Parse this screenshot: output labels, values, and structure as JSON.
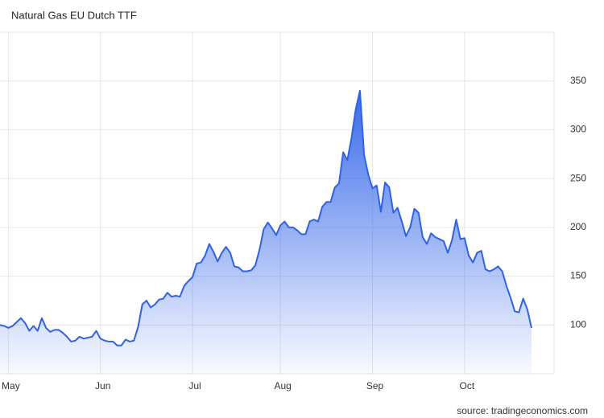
{
  "chart_data": {
    "type": "area",
    "title": "Natural Gas EU Dutch TTF",
    "source": "source: tradingeconomics.com",
    "categories": [
      null,
      null,
      "May",
      null,
      null,
      null,
      null,
      null,
      null,
      null,
      null,
      null,
      null,
      null,
      null,
      null,
      null,
      null,
      null,
      null,
      null,
      null,
      null,
      null,
      "Jun",
      null,
      null,
      null,
      null,
      null,
      null,
      null,
      null,
      null,
      null,
      null,
      null,
      null,
      null,
      null,
      null,
      null,
      null,
      null,
      null,
      null,
      "Jul",
      null,
      null,
      null,
      null,
      null,
      null,
      null,
      null,
      null,
      null,
      null,
      null,
      null,
      null,
      null,
      null,
      null,
      null,
      null,
      null,
      "Aug",
      null,
      null,
      null,
      null,
      null,
      null,
      null,
      null,
      null,
      null,
      null,
      null,
      null,
      null,
      null,
      null,
      null,
      null,
      null,
      null,
      null,
      "Sep",
      null,
      null,
      null,
      null,
      null,
      null,
      null,
      null,
      null,
      null,
      null,
      null,
      null,
      null,
      null,
      null,
      null,
      null,
      null,
      null,
      null,
      "Oct",
      null,
      null,
      null,
      null,
      null,
      null,
      null,
      null,
      null,
      null,
      null,
      null,
      null,
      null,
      null,
      null
    ],
    "values": [
      100,
      99,
      97,
      99,
      103,
      107,
      102,
      94,
      99,
      94,
      107,
      97,
      93,
      95,
      95,
      92,
      88,
      83,
      84,
      88,
      86,
      87,
      88,
      94,
      86,
      84,
      83,
      83,
      79,
      79,
      85,
      83,
      84,
      98,
      121,
      125,
      118,
      121,
      126,
      127,
      133,
      129,
      130,
      129,
      140,
      145,
      149,
      163,
      164,
      171,
      183,
      175,
      165,
      174,
      180,
      174,
      160,
      159,
      155,
      155,
      156,
      161,
      177,
      198,
      205,
      199,
      192,
      202,
      206,
      200,
      200,
      197,
      193,
      193,
      206,
      208,
      206,
      221,
      226,
      226,
      241,
      245,
      277,
      269,
      292,
      321,
      340,
      274,
      254,
      240,
      243,
      216,
      246,
      241,
      215,
      220,
      206,
      191,
      200,
      219,
      215,
      190,
      183,
      194,
      190,
      188,
      186,
      174,
      187,
      208,
      188,
      189,
      171,
      164,
      174,
      176,
      157,
      155,
      157,
      160,
      155,
      140,
      128,
      114,
      113,
      127,
      116,
      97
    ],
    "color": "#2f62ea",
    "ylim": [
      50,
      400
    ],
    "yticks": [
      100,
      150,
      200,
      250,
      300,
      350
    ],
    "grid": true
  }
}
